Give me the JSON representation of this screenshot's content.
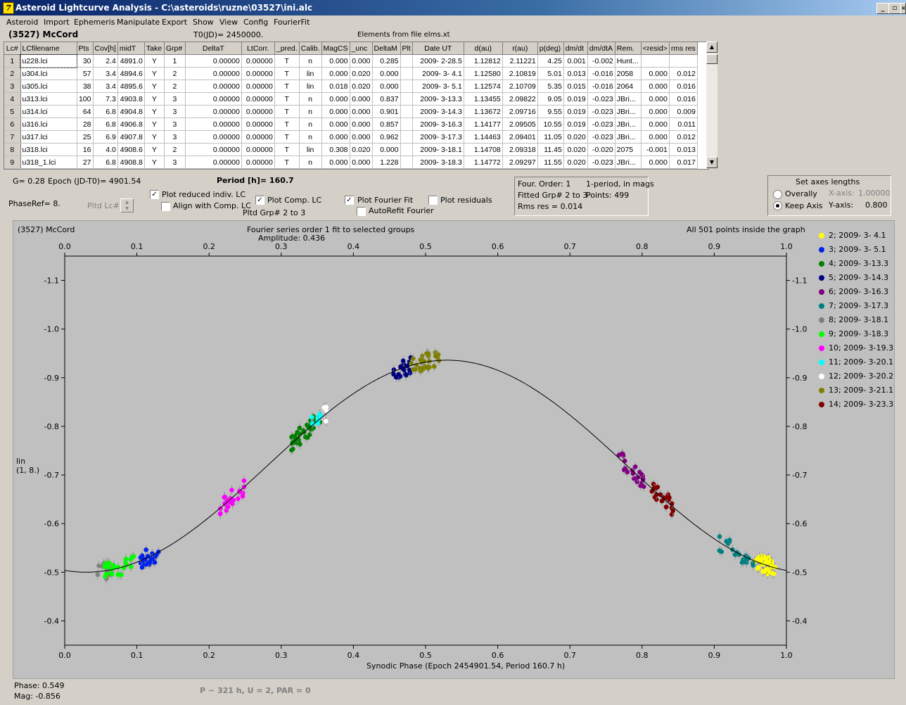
{
  "window": {
    "title": "Asteroid Lightcurve Analysis - C:\\asteroids\\ruzne\\03527\\ini.alc",
    "app_icon": "7"
  },
  "menu": [
    "Asteroid",
    "Import",
    "Ephemeris",
    "Manipulate",
    "Export",
    "Show",
    "View",
    "Config",
    "FourierFit"
  ],
  "header": {
    "asteroid": "(3527) McCord",
    "t0": "T0(JD)= 2450000.",
    "elements": "Elements from file elms.xt"
  },
  "table": {
    "columns": [
      "Lc#",
      "LCfilename",
      "Pts",
      "Cov[h]",
      "midT",
      "Take",
      "Grp#",
      "DeltaT",
      "LtCorr.",
      "_pred.",
      "Calib.",
      "MagCS",
      "_unc",
      "DeltaM",
      "Plt",
      "Date UT",
      "d(au)",
      "r(au)",
      "p(deg)",
      "dm/dt",
      "dm/dtA",
      "Rem.",
      "<resid>",
      "rms res"
    ],
    "rows": [
      [
        "1",
        "u228.lci",
        "30",
        "2.4",
        "4891.0",
        "Y",
        "1",
        "0.00000",
        "0.00000",
        "T",
        "n",
        "0.000",
        "0.000",
        "0.285",
        "",
        "2009- 2-28.5",
        "1.12812",
        "2.11221",
        "4.25",
        "0.001",
        "-0.002",
        "Hunt...",
        "",
        ""
      ],
      [
        "2",
        "u304.lci",
        "57",
        "3.4",
        "4894.6",
        "Y",
        "2",
        "0.00000",
        "0.00000",
        "T",
        "lin",
        "0.000",
        "0.020",
        "0.000",
        "",
        "2009- 3- 4.1",
        "1.12580",
        "2.10819",
        "5.01",
        "0.013",
        "-0.016",
        "2058",
        "0.000",
        "0.012"
      ],
      [
        "3",
        "u305.lci",
        "38",
        "3.4",
        "4895.6",
        "Y",
        "2",
        "0.00000",
        "0.00000",
        "T",
        "lin",
        "0.018",
        "0.020",
        "0.000",
        "",
        "2009- 3- 5.1",
        "1.12574",
        "2.10709",
        "5.35",
        "0.015",
        "-0.016",
        "2064",
        "0.000",
        "0.016"
      ],
      [
        "4",
        "u313.lci",
        "100",
        "7.3",
        "4903.8",
        "Y",
        "3",
        "0.00000",
        "0.00000",
        "T",
        "n",
        "0.000",
        "0.000",
        "0.837",
        "",
        "2009- 3-13.3",
        "1.13455",
        "2.09822",
        "9.05",
        "0.019",
        "-0.023",
        "JBri...",
        "0.000",
        "0.016"
      ],
      [
        "5",
        "u314.lci",
        "64",
        "6.8",
        "4904.8",
        "Y",
        "3",
        "0.00000",
        "0.00000",
        "T",
        "n",
        "0.000",
        "0.000",
        "0.901",
        "",
        "2009- 3-14.3",
        "1.13672",
        "2.09716",
        "9.55",
        "0.019",
        "-0.023",
        "JBri...",
        "0.000",
        "0.009"
      ],
      [
        "6",
        "u316.lci",
        "28",
        "6.8",
        "4906.8",
        "Y",
        "3",
        "0.00000",
        "0.00000",
        "T",
        "n",
        "0.000",
        "0.000",
        "0.857",
        "",
        "2009- 3-16.3",
        "1.14177",
        "2.09505",
        "10.55",
        "0.019",
        "-0.023",
        "JBri...",
        "0.000",
        "0.011"
      ],
      [
        "7",
        "u317.lci",
        "25",
        "6.9",
        "4907.8",
        "Y",
        "3",
        "0.00000",
        "0.00000",
        "T",
        "n",
        "0.000",
        "0.000",
        "0.962",
        "",
        "2009- 3-17.3",
        "1.14463",
        "2.09401",
        "11.05",
        "0.020",
        "-0.023",
        "JBri...",
        "0.000",
        "0.012"
      ],
      [
        "8",
        "u318.lci",
        "16",
        "4.0",
        "4908.6",
        "Y",
        "2",
        "0.00000",
        "0.00000",
        "T",
        "lin",
        "0.308",
        "0.020",
        "0.000",
        "",
        "2009- 3-18.1",
        "1.14708",
        "2.09318",
        "11.45",
        "0.020",
        "-0.020",
        "2075",
        "-0.001",
        "0.013"
      ],
      [
        "9",
        "u318_1.lci",
        "27",
        "6.8",
        "4908.8",
        "Y",
        "3",
        "0.00000",
        "0.00000",
        "T",
        "n",
        "0.000",
        "0.000",
        "1.228",
        "",
        "2009- 3-18.3",
        "1.14772",
        "2.09297",
        "11.55",
        "0.020",
        "-0.023",
        "JBri...",
        "0.000",
        "0.017"
      ]
    ]
  },
  "controls": {
    "g": "G= 0.28",
    "epoch": "Epoch (JD-T0)= 4901.54",
    "period": "Period [h]= 160.7",
    "phaseref": "PhaseRef= 8.",
    "pltd_lc": "Pltd Lc#:",
    "plot_reduced": "Plot reduced indiv. LC",
    "align_comp": "Align with Comp. LC",
    "plot_comp": "Plot Comp. LC",
    "pltd_grp": "Pltd Grp#  2   to   3",
    "plot_fourier": "Plot Fourier Fit",
    "autorefit": "AutoRefit Fourier",
    "plot_resid": "Plot residuals",
    "four_order": "Four. Order:  1",
    "one_period": "1-period, in mags",
    "fitted_grp": "Fitted Grp# 2 to 3",
    "points": "Points: 499",
    "rms": "Rms res      = 0.014",
    "axes_title": "Set axes lengths",
    "overally": "Overally",
    "keep_axis": "Keep Axis",
    "xaxis_label": "X-axis:",
    "xaxis_val": "1.00000",
    "yaxis_label": "Y-axis:",
    "yaxis_val": "0.800"
  },
  "plot": {
    "name": "(3527) McCord",
    "fit_title": "Fourier series order 1 fit to selected groups",
    "amplitude": "Amplitude: 0.436",
    "inside": "All 501 points inside the graph",
    "ylabel1": "lin",
    "ylabel2": "(1, 8.)",
    "xlabel": "Synodic Phase (Epoch 2454901.54, Period 160.7 h)"
  },
  "chart_data": {
    "type": "scatter",
    "xlim": [
      0.0,
      1.0
    ],
    "ylim": [
      -1.15,
      -0.35
    ],
    "x_ticks": [
      "0.0",
      "0.1",
      "0.2",
      "0.3",
      "0.4",
      "0.5",
      "0.6",
      "0.7",
      "0.8",
      "0.9",
      "1.0"
    ],
    "y_ticks": [
      "-1.1",
      "-1.0",
      "-0.9",
      "-0.8",
      "-0.7",
      "-0.6",
      "-0.5",
      "-0.4"
    ],
    "fit": {
      "mean": -0.718,
      "amplitude": 0.436,
      "phase_of_min": 0.53
    },
    "series": [
      {
        "name": "2; 2009- 3- 4.1",
        "color": "#ffff00",
        "x_range": [
          0.955,
          0.985
        ],
        "y_center": -0.515,
        "n": 40
      },
      {
        "name": "3; 2009- 3- 5.1",
        "color": "#0022ee",
        "x_range": [
          0.105,
          0.13
        ],
        "y_center": -0.53,
        "n": 24
      },
      {
        "name": "4; 2009- 3-13.3",
        "color": "#008000",
        "x_range": [
          0.31,
          0.355
        ],
        "y_center": -0.79,
        "n": 36
      },
      {
        "name": "5; 2009- 3-14.3",
        "color": "#000080",
        "x_range": [
          0.455,
          0.48
        ],
        "y_center": -0.92,
        "n": 20
      },
      {
        "name": "6; 2009- 3-16.3",
        "color": "#800080",
        "x_range": [
          0.765,
          0.81
        ],
        "y_center": -0.72,
        "n": 22
      },
      {
        "name": "7; 2009- 3-17.3",
        "color": "#008080",
        "x_range": [
          0.905,
          0.955
        ],
        "y_center": -0.54,
        "n": 20
      },
      {
        "name": "8; 2009- 3-18.1",
        "color": "#808080",
        "x_range": [
          0.045,
          0.065
        ],
        "y_center": -0.5,
        "n": 14
      },
      {
        "name": "9; 2009- 3-18.3",
        "color": "#00ff00",
        "x_range": [
          0.055,
          0.1
        ],
        "y_center": -0.51,
        "n": 26
      },
      {
        "name": "10; 2009- 3-19.3",
        "color": "#ff00ff",
        "x_range": [
          0.21,
          0.25
        ],
        "y_center": -0.655,
        "n": 24
      },
      {
        "name": "11; 2009- 3-20.1",
        "color": "#00ffff",
        "x_range": [
          0.34,
          0.355
        ],
        "y_center": -0.81,
        "n": 8
      },
      {
        "name": "12; 2009- 3-20.2",
        "color": "#ffffff",
        "x_range": [
          0.355,
          0.365
        ],
        "y_center": -0.83,
        "n": 5
      },
      {
        "name": "13; 2009- 3-21.1",
        "color": "#808000",
        "x_range": [
          0.48,
          0.52
        ],
        "y_center": -0.935,
        "n": 30
      },
      {
        "name": "14; 2009- 3-23.3",
        "color": "#800000",
        "x_range": [
          0.81,
          0.845
        ],
        "y_center": -0.65,
        "n": 22
      }
    ]
  },
  "footer": {
    "phase": "Phase:  0.549",
    "mag": "Mag:    -0.856",
    "p_info": "P ~ 321 h, U = 2, PAR = 0"
  }
}
